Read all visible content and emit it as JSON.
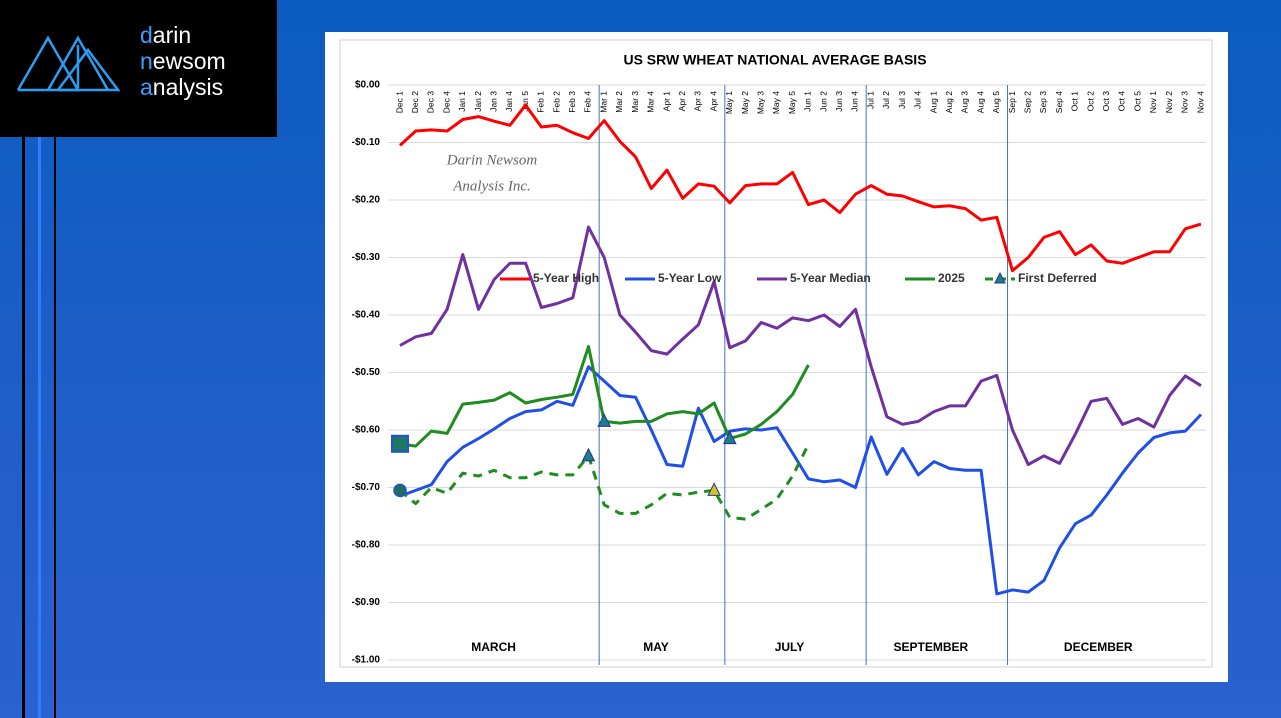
{
  "logo": {
    "lines": [
      "darin",
      "newsom",
      "analysis"
    ]
  },
  "watermark": [
    "Darin Newsom",
    "Analysis Inc."
  ],
  "chart_data": {
    "type": "line",
    "title": "US SRW WHEAT NATIONAL AVERAGE BASIS",
    "categories": [
      "Dec 1",
      "Dec 2",
      "Dec 3",
      "Dec 4",
      "Jan 1",
      "Jan 2",
      "Jan 3",
      "Jan 4",
      "Jan 5",
      "Feb 1",
      "Feb 2",
      "Feb 3",
      "Feb 4",
      "Mar 1",
      "Mar 2",
      "Mar 3",
      "Mar 4",
      "Apr 1",
      "Apr 2",
      "Apr 3",
      "Apr 4",
      "May 1",
      "May 2",
      "May 3",
      "May 4",
      "May 5",
      "Jun 1",
      "Jun 2",
      "Jun 3",
      "Jun 4",
      "Jul 1",
      "Jul 2",
      "Jul 3",
      "Jul 4",
      "Aug 1",
      "Aug 2",
      "Aug 3",
      "Aug 4",
      "Aug 5",
      "Sep 1",
      "Sep 2",
      "Sep 3",
      "Sep 4",
      "Oct 1",
      "Oct 2",
      "Oct 3",
      "Oct 4",
      "Oct 5",
      "Nov 1",
      "Nov 2",
      "Nov 3",
      "Nov 4"
    ],
    "series": [
      {
        "name": "5-Year High",
        "color": "#ff0000",
        "dashed": false,
        "values": [
          -0.105,
          -0.08,
          -0.078,
          -0.08,
          -0.06,
          -0.055,
          -0.063,
          -0.07,
          -0.035,
          -0.073,
          -0.07,
          -0.083,
          -0.093,
          -0.062,
          -0.098,
          -0.125,
          -0.18,
          -0.148,
          -0.197,
          -0.172,
          -0.176,
          -0.205,
          -0.175,
          -0.172,
          -0.172,
          -0.152,
          -0.208,
          -0.2,
          -0.222,
          -0.19,
          -0.175,
          -0.19,
          -0.193,
          -0.203,
          -0.212,
          -0.21,
          -0.215,
          -0.235,
          -0.23,
          -0.323,
          -0.3,
          -0.265,
          -0.255,
          -0.295,
          -0.278,
          -0.306,
          -0.31,
          -0.3,
          -0.29,
          -0.29,
          -0.25,
          -0.242
        ]
      },
      {
        "name": "5-Year Low",
        "color": "#1f4fe8",
        "dashed": false,
        "values": [
          -0.715,
          -0.705,
          -0.695,
          -0.655,
          -0.63,
          -0.615,
          -0.598,
          -0.58,
          -0.568,
          -0.565,
          -0.55,
          -0.557,
          -0.49,
          -0.515,
          -0.54,
          -0.543,
          -0.6,
          -0.66,
          -0.663,
          -0.562,
          -0.62,
          -0.602,
          -0.598,
          -0.6,
          -0.596,
          -0.64,
          -0.685,
          -0.69,
          -0.687,
          -0.7,
          -0.612,
          -0.677,
          -0.632,
          -0.678,
          -0.655,
          -0.667,
          -0.67,
          -0.67,
          -0.885,
          -0.878,
          -0.882,
          -0.862,
          -0.805,
          -0.763,
          -0.748,
          -0.713,
          -0.675,
          -0.64,
          -0.613,
          -0.605,
          -0.602,
          -0.573
        ]
      },
      {
        "name": "5-Year Median",
        "color": "#7030a0",
        "dashed": false,
        "values": [
          -0.453,
          -0.438,
          -0.432,
          -0.39,
          -0.295,
          -0.39,
          -0.338,
          -0.31,
          -0.31,
          -0.387,
          -0.38,
          -0.37,
          -0.247,
          -0.3,
          -0.4,
          -0.43,
          -0.462,
          -0.468,
          -0.442,
          -0.417,
          -0.342,
          -0.457,
          -0.445,
          -0.413,
          -0.423,
          -0.405,
          -0.41,
          -0.4,
          -0.42,
          -0.39,
          -0.49,
          -0.577,
          -0.59,
          -0.585,
          -0.568,
          -0.558,
          -0.558,
          -0.515,
          -0.505,
          -0.6,
          -0.66,
          -0.645,
          -0.658,
          -0.607,
          -0.55,
          -0.545,
          -0.59,
          -0.58,
          -0.595,
          -0.54,
          -0.506,
          -0.523
        ]
      },
      {
        "name": "2025",
        "color": "#1e8c1e",
        "dashed": false,
        "values": [
          -0.624,
          -0.628,
          -0.602,
          -0.606,
          -0.555,
          -0.552,
          -0.548,
          -0.535,
          -0.553,
          -0.547,
          -0.543,
          -0.538,
          -0.455,
          -0.585,
          -0.588,
          -0.585,
          -0.585,
          -0.572,
          -0.568,
          -0.572,
          -0.553,
          -0.615,
          -0.607,
          -0.59,
          -0.568,
          -0.538,
          -0.487,
          null,
          null,
          null,
          null,
          null,
          null,
          null,
          null,
          null,
          null,
          null,
          null,
          null,
          null,
          null,
          null,
          null,
          null,
          null,
          null,
          null,
          null,
          null,
          null,
          null
        ]
      },
      {
        "name": "First Deferred",
        "color": "#1e8c1e",
        "dashed": true,
        "values": [
          -0.705,
          -0.728,
          -0.7,
          -0.71,
          -0.675,
          -0.68,
          -0.67,
          -0.683,
          -0.683,
          -0.673,
          -0.678,
          -0.678,
          -0.645,
          -0.73,
          -0.745,
          -0.745,
          -0.73,
          -0.71,
          -0.713,
          -0.708,
          -0.705,
          -0.752,
          -0.755,
          -0.738,
          -0.72,
          -0.68,
          -0.625,
          null,
          null,
          null,
          null,
          null,
          null,
          null,
          null,
          null,
          null,
          null,
          null,
          null,
          null,
          null,
          null,
          null,
          null,
          null,
          null,
          null,
          null,
          null,
          null,
          null
        ]
      }
    ],
    "markers": [
      {
        "series": 3,
        "index": 0,
        "shape": "square",
        "color": "#1e7a5c"
      },
      {
        "series": 4,
        "index": 0,
        "shape": "circle",
        "color": "#1e6e5a"
      },
      {
        "series": 4,
        "index": 12,
        "shape": "triangle",
        "color": "#1e7a8c"
      },
      {
        "series": 3,
        "index": 13,
        "shape": "triangle",
        "color": "#1e7a8c"
      },
      {
        "series": 4,
        "index": 20,
        "shape": "triangle",
        "color": "#d6c21a"
      },
      {
        "series": 3,
        "index": 21,
        "shape": "triangle",
        "color": "#1e7a8c"
      }
    ],
    "periods": [
      {
        "label": "MARCH",
        "start": "Dec 1"
      },
      {
        "label": "MAY",
        "start": "Mar 1"
      },
      {
        "label": "JULY",
        "start": "May 1"
      },
      {
        "label": "SEPTEMBER",
        "start": "Jul 1"
      },
      {
        "label": "DECEMBER",
        "start": "Sep 1"
      }
    ],
    "ylim": [
      -1,
      0
    ],
    "yticks": [
      {
        "value": 0,
        "label": "$0.00"
      },
      {
        "value": -0.1,
        "label": "-$0.10"
      },
      {
        "value": -0.2,
        "label": "-$0.20"
      },
      {
        "value": -0.3,
        "label": "-$0.30"
      },
      {
        "value": -0.4,
        "label": "-$0.40"
      },
      {
        "value": -0.5,
        "label": "-$0.50"
      },
      {
        "value": -0.6,
        "label": "-$0.60"
      },
      {
        "value": -0.7,
        "label": "-$0.70"
      },
      {
        "value": -0.8,
        "label": "-$0.80"
      },
      {
        "value": -0.9,
        "label": "-$0.90"
      },
      {
        "value": -1,
        "label": "-$1.00"
      }
    ],
    "grid": true,
    "legend": "center"
  }
}
